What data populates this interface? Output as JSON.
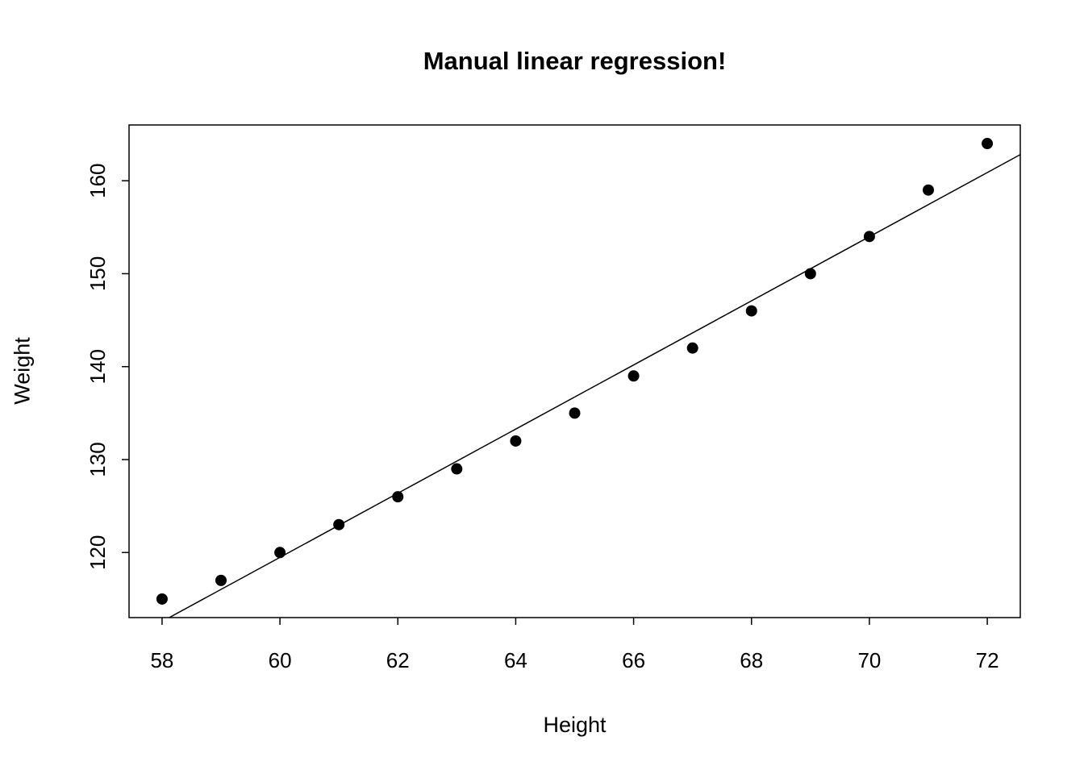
{
  "figure": {
    "background": "#ffffff"
  },
  "chart_data": {
    "type": "scatter",
    "title": "Manual linear regression!",
    "xlabel": "Height",
    "ylabel": "Weight",
    "points": {
      "x": [
        58,
        59,
        60,
        61,
        62,
        63,
        64,
        65,
        66,
        67,
        68,
        69,
        70,
        71,
        72
      ],
      "y": [
        115,
        117,
        120,
        123,
        126,
        129,
        132,
        135,
        139,
        142,
        146,
        150,
        154,
        159,
        164
      ]
    },
    "regression_line": {
      "slope": 3.45,
      "intercept": -87.52
    },
    "x_ticks": [
      58,
      60,
      62,
      64,
      66,
      68,
      70,
      72
    ],
    "y_ticks": [
      120,
      130,
      140,
      150,
      160
    ],
    "xlim": [
      57.44,
      72.56
    ],
    "ylim": [
      113,
      166
    ],
    "grid": false,
    "legend": "none",
    "point_color": "#000000",
    "line_color": "#000000",
    "box_color": "#000000",
    "tick_font_size": 26
  }
}
